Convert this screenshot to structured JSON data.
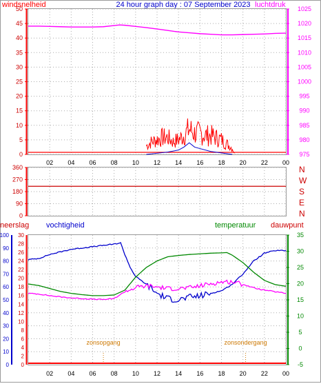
{
  "header": {
    "left_label": "windsnelheid",
    "title": "24 hour graph day : 07 September 2023",
    "right_label": "luchtdruk"
  },
  "mid_panel": {
    "direction_letters": [
      "N",
      "W",
      "S",
      "E",
      "N"
    ]
  },
  "bottom_header": {
    "neerslag": "neerslag",
    "vochtigheid": "vochtigheid",
    "temperatuur": "temperatuur",
    "dauwpunt": "dauwpunt"
  },
  "annotations": {
    "sunrise": "zonsopgang",
    "sunset": "zonsondergang",
    "sunrise_hour": 7.0,
    "sunset_hour": 20.25
  },
  "colors": {
    "wind": "#ff0000",
    "pressure": "#ff00ff",
    "humidity": "#0000cc",
    "temperature": "#008800",
    "dewpoint": "#ff00ff",
    "rain": "#ff0000",
    "header_blue": "#0000cc",
    "annotation": "#cc7700"
  },
  "chart_data": [
    {
      "type": "line",
      "title": "24 hour graph day : 07 September 2023",
      "x_ticks": [
        "02",
        "04",
        "06",
        "08",
        "10",
        "12",
        "14",
        "16",
        "18",
        "20",
        "22",
        "00"
      ],
      "xlim": [
        0,
        24
      ],
      "left_axis": {
        "label": "windsnelheid",
        "ylim": [
          0,
          50
        ],
        "ticks": [
          0,
          5,
          10,
          15,
          20,
          25,
          30,
          35,
          40,
          45,
          50
        ]
      },
      "right_axis": {
        "label": "luchtdruk",
        "ylim": [
          975,
          1025
        ],
        "ticks": [
          975,
          980,
          985,
          990,
          995,
          1000,
          1005,
          1010,
          1015,
          1020,
          1025
        ]
      },
      "series": [
        {
          "name": "luchtdruk",
          "axis": "right",
          "x": [
            0,
            1,
            2,
            3,
            4,
            5,
            6,
            7,
            8,
            8.5,
            9,
            10,
            11,
            12,
            13,
            14,
            15,
            16,
            17,
            18,
            19,
            20,
            21,
            22,
            23,
            24
          ],
          "y": [
            1019.1,
            1019.1,
            1019.0,
            1018.9,
            1018.8,
            1018.8,
            1018.8,
            1018.9,
            1019.3,
            1019.5,
            1019.4,
            1019.0,
            1018.6,
            1018.1,
            1017.6,
            1017.1,
            1016.8,
            1016.5,
            1016.3,
            1016.1,
            1016.1,
            1016.2,
            1016.3,
            1016.4,
            1016.6,
            1016.7
          ]
        },
        {
          "name": "windsnelheid",
          "axis": "left",
          "style": "bars",
          "x": [
            11.0,
            11.5,
            12.0,
            12.5,
            13.0,
            13.5,
            14.0,
            14.5,
            15.0,
            15.5,
            16.0,
            16.5,
            17.0,
            17.5,
            18.0,
            18.5,
            19.0,
            19.25
          ],
          "y": [
            4,
            6,
            7,
            8,
            8,
            6,
            7,
            9,
            12,
            10,
            10,
            9,
            9,
            8,
            7,
            5,
            3,
            0
          ]
        },
        {
          "name": "windsnelheid gemiddeld",
          "axis": "left",
          "x": [
            11.0,
            12.0,
            13.0,
            14.0,
            14.5,
            15.0,
            15.5,
            16.0,
            17.0,
            18.0,
            19.0
          ],
          "y": [
            0,
            0.4,
            0.8,
            1.5,
            2.5,
            4,
            2.5,
            2,
            1,
            0.5,
            0
          ]
        }
      ]
    },
    {
      "type": "line",
      "x_ticks": [
        "02",
        "04",
        "06",
        "08",
        "10",
        "12",
        "14",
        "16",
        "18",
        "20",
        "22",
        "00"
      ],
      "xlim": [
        0,
        24
      ],
      "left_axis": {
        "label": "",
        "ylim": [
          0,
          360
        ],
        "ticks": [
          0,
          90,
          180,
          270,
          360
        ]
      },
      "right_axis_labels": [
        "N",
        "W",
        "S",
        "E",
        "N"
      ],
      "series": [
        {
          "name": "windrichting",
          "x": [
            0,
            24
          ],
          "y": [
            220,
            220
          ]
        }
      ]
    },
    {
      "type": "line",
      "x_ticks": [
        "02",
        "04",
        "06",
        "08",
        "10",
        "12",
        "14",
        "16",
        "18",
        "20",
        "22",
        "00"
      ],
      "xlim": [
        0,
        24
      ],
      "axes": {
        "vochtigheid": {
          "ylim": [
            0,
            100
          ],
          "ticks": [
            0,
            10,
            20,
            30,
            40,
            50,
            60,
            70,
            80,
            90,
            100
          ]
        },
        "neerslag": {
          "ylim": [
            0,
            30
          ],
          "ticks": [
            0,
            2,
            4,
            6,
            8,
            10,
            12,
            14,
            16,
            18,
            20,
            22,
            24,
            26,
            28,
            30
          ]
        },
        "temperatuur": {
          "ylim": [
            -5,
            35
          ],
          "ticks": [
            -5,
            0,
            5,
            10,
            15,
            20,
            25,
            30,
            35
          ]
        }
      },
      "series": [
        {
          "name": "vochtigheid",
          "axis": "vochtigheid",
          "x": [
            0,
            1,
            2,
            3,
            4,
            5,
            6,
            7,
            8,
            8.6,
            9,
            9.5,
            10,
            11,
            12,
            13,
            14,
            15,
            16,
            17,
            18,
            19,
            20,
            21,
            22,
            23,
            24
          ],
          "y": [
            81,
            82,
            85,
            87,
            89,
            90,
            91,
            92,
            93,
            94,
            85,
            75,
            68,
            62,
            55,
            51,
            50,
            52,
            53,
            55,
            57,
            62,
            70,
            80,
            86,
            88,
            88
          ]
        },
        {
          "name": "temperatuur",
          "axis": "temperatuur",
          "x": [
            0,
            1,
            2,
            3,
            4,
            5,
            6,
            7,
            8,
            9,
            10,
            11,
            12,
            13,
            14,
            15,
            16,
            17,
            18,
            18.5,
            19,
            20,
            21,
            22,
            23,
            24
          ],
          "y": [
            19.9,
            19.4,
            18.5,
            17.6,
            17.0,
            16.6,
            16.3,
            16.3,
            16.5,
            18.0,
            22.0,
            25.0,
            27.0,
            28.3,
            28.7,
            29.0,
            29.2,
            29.4,
            29.5,
            29.6,
            28.8,
            26.5,
            23.5,
            21.0,
            19.7,
            19.2
          ]
        },
        {
          "name": "dauwpunt",
          "axis": "temperatuur",
          "x": [
            0,
            1,
            2,
            3,
            4,
            5,
            6,
            7,
            8,
            9,
            10,
            11,
            12,
            13,
            14,
            15,
            16,
            17,
            18,
            19,
            20,
            21,
            22,
            23,
            24
          ],
          "y": [
            17.0,
            16.8,
            16.3,
            15.9,
            15.6,
            15.4,
            15.2,
            15.1,
            15.4,
            17.5,
            18.8,
            19.3,
            19.0,
            18.5,
            18.5,
            18.7,
            19.3,
            20.0,
            20.5,
            20.6,
            19.8,
            18.7,
            18.0,
            17.5,
            17.0
          ]
        },
        {
          "name": "neerslag",
          "axis": "neerslag",
          "x": [
            0,
            24
          ],
          "y": [
            0,
            0
          ]
        }
      ]
    }
  ]
}
